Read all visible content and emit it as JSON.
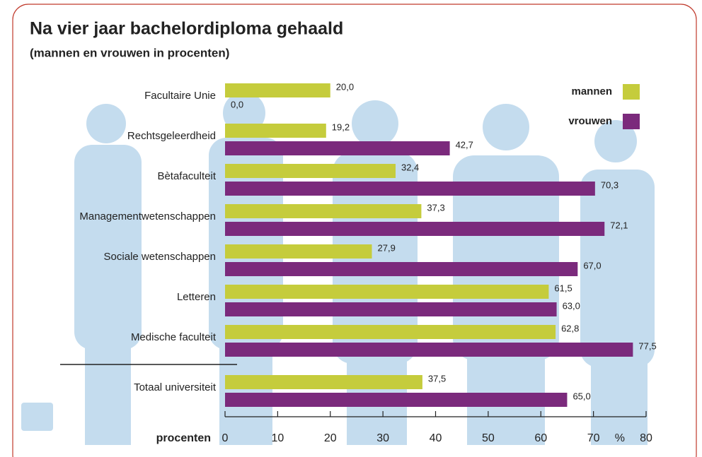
{
  "chart_data": {
    "type": "bar",
    "orientation": "horizontal",
    "title": "Na vier jaar bachelordiploma gehaald",
    "subtitle": "(mannen en vrouwen in procenten)",
    "categories": [
      "Facultaire Unie",
      "Rechtsgeleerdheid",
      "Bètafaculteit",
      "Managementwetenschappen",
      "Sociale wetenschappen",
      "Letteren",
      "Medische faculteit",
      "Totaal universiteit"
    ],
    "series": [
      {
        "name": "mannen",
        "color": "#c5cc3c",
        "values": [
          20.0,
          19.2,
          32.4,
          37.3,
          27.9,
          61.5,
          62.8,
          37.5
        ],
        "value_labels": [
          "20,0",
          "19,2",
          "32,4",
          "37,3",
          "27,9",
          "61,5",
          "62,8",
          "37,5"
        ]
      },
      {
        "name": "vrouwen",
        "color": "#7b2a7c",
        "values": [
          0.0,
          42.7,
          70.3,
          72.1,
          67.0,
          63.0,
          77.5,
          65.0
        ],
        "value_labels": [
          "0,0",
          "42,7",
          "70,3",
          "72,1",
          "67,0",
          "63,0",
          "77,5",
          "65,0"
        ]
      }
    ],
    "xlabel": "procenten",
    "x_unit_label": "%",
    "xlim": [
      0,
      80
    ],
    "xticks": [
      0,
      10,
      20,
      30,
      40,
      50,
      60,
      70,
      80
    ],
    "legend": "top-right"
  }
}
